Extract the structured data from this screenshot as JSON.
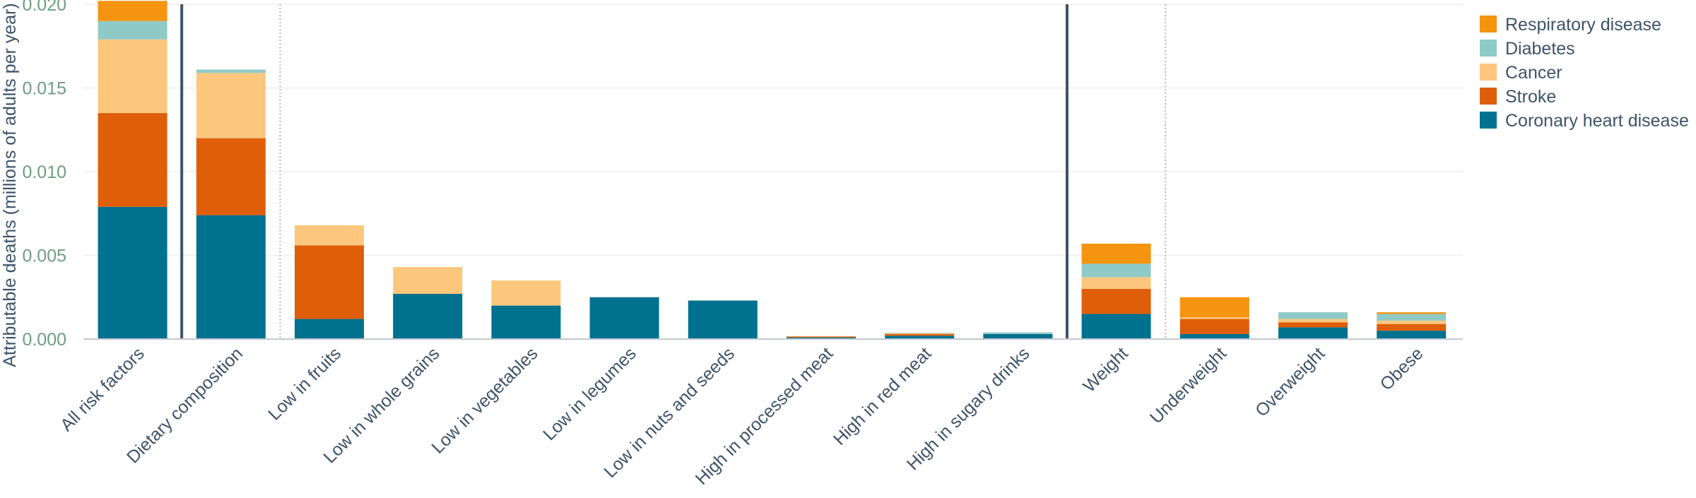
{
  "chart_data": {
    "type": "bar",
    "stacked": true,
    "title": "",
    "xlabel": "",
    "ylabel": "Attributable deaths (millions of adults per year)",
    "ylim": [
      0,
      0.02
    ],
    "yticks": [
      "0.000",
      "0.005",
      "0.010",
      "0.015",
      "0.020"
    ],
    "grid": true,
    "legend_position": "top-right",
    "categories": [
      "All risk factors",
      "Dietary composition",
      "Low in fruits",
      "Low in whole grains",
      "Low in vegetables",
      "Low in legumes",
      "Low in nuts and seeds",
      "High in processed meat",
      "High in red meat",
      "High in sugary drinks",
      "Weight",
      "Underweight",
      "Overweight",
      "Obese"
    ],
    "series": [
      {
        "name": "Coronary heart disease",
        "color": "#00718f",
        "values": [
          0.0079,
          0.0074,
          0.0012,
          0.0027,
          0.002,
          0.0025,
          0.0023,
          0.0001,
          0.0002,
          0.0003,
          0.0015,
          0.0003,
          0.0007,
          0.0005
        ]
      },
      {
        "name": "Stroke",
        "color": "#df5e0a",
        "values": [
          0.0056,
          0.0046,
          0.0044,
          0.0,
          0.0,
          0.0,
          0.0,
          5e-05,
          0.0001,
          0.0,
          0.0015,
          0.0009,
          0.0003,
          0.0004
        ]
      },
      {
        "name": "Cancer",
        "color": "#fcc77d",
        "values": [
          0.0044,
          0.0039,
          0.0012,
          0.0016,
          0.0015,
          0.0,
          0.0,
          3e-05,
          5e-05,
          0.0,
          0.0007,
          0.0001,
          0.0002,
          0.0002
        ]
      },
      {
        "name": "Diabetes",
        "color": "#90cac6",
        "values": [
          0.0011,
          0.0002,
          0.0,
          0.0,
          0.0,
          0.0,
          0.0,
          0.0,
          3e-05,
          0.0001,
          0.0008,
          0.0,
          0.0004,
          0.0004
        ]
      },
      {
        "name": "Respiratory disease",
        "color": "#f4940f",
        "values": [
          0.0012,
          0.0,
          0.0,
          0.0,
          0.0,
          0.0,
          0.0,
          0.0,
          0.0,
          0.0,
          0.0012,
          0.0012,
          0.0,
          0.0001
        ]
      }
    ],
    "group_dividers": [
      {
        "after": "All risk factors",
        "style": "solid"
      },
      {
        "after": "Dietary composition",
        "style": "dotted"
      },
      {
        "after": "High in sugary drinks",
        "style": "solid"
      },
      {
        "after": "Weight",
        "style": "dotted"
      }
    ],
    "colors": {
      "axis_text": "#6d9d84",
      "label_text": "#3d5469",
      "grid": "#eeeeee",
      "solid_divider": "#3d5469",
      "dotted_divider": "#b4bac3"
    }
  }
}
